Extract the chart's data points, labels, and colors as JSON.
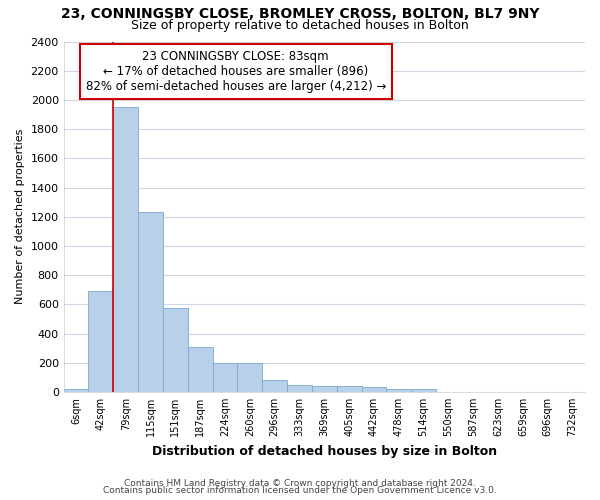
{
  "title": "23, CONNINGSBY CLOSE, BROMLEY CROSS, BOLTON, BL7 9NY",
  "subtitle": "Size of property relative to detached houses in Bolton",
  "xlabel": "Distribution of detached houses by size in Bolton",
  "ylabel": "Number of detached properties",
  "categories": [
    "6sqm",
    "42sqm",
    "79sqm",
    "115sqm",
    "151sqm",
    "187sqm",
    "224sqm",
    "260sqm",
    "296sqm",
    "333sqm",
    "369sqm",
    "405sqm",
    "442sqm",
    "478sqm",
    "514sqm",
    "550sqm",
    "587sqm",
    "623sqm",
    "659sqm",
    "696sqm",
    "732sqm"
  ],
  "bar_heights": [
    20,
    690,
    1950,
    1230,
    575,
    305,
    200,
    200,
    80,
    48,
    38,
    38,
    35,
    20,
    20,
    0,
    0,
    0,
    0,
    0,
    0
  ],
  "bar_color": "#b8d0e8",
  "bar_edge_color": "#7aaad0",
  "property_line_index": 2,
  "property_line_color": "#cc0000",
  "annotation_text": "23 CONNINGSBY CLOSE: 83sqm\n← 17% of detached houses are smaller (896)\n82% of semi-detached houses are larger (4,212) →",
  "annotation_box_color": "#cc0000",
  "ylim": [
    0,
    2400
  ],
  "yticks": [
    0,
    200,
    400,
    600,
    800,
    1000,
    1200,
    1400,
    1600,
    1800,
    2000,
    2200,
    2400
  ],
  "footer_line1": "Contains HM Land Registry data © Crown copyright and database right 2024.",
  "footer_line2": "Contains public sector information licensed under the Open Government Licence v3.0.",
  "bg_color": "#ffffff",
  "plot_bg_color": "#ffffff",
  "grid_color": "#d0d8e8"
}
